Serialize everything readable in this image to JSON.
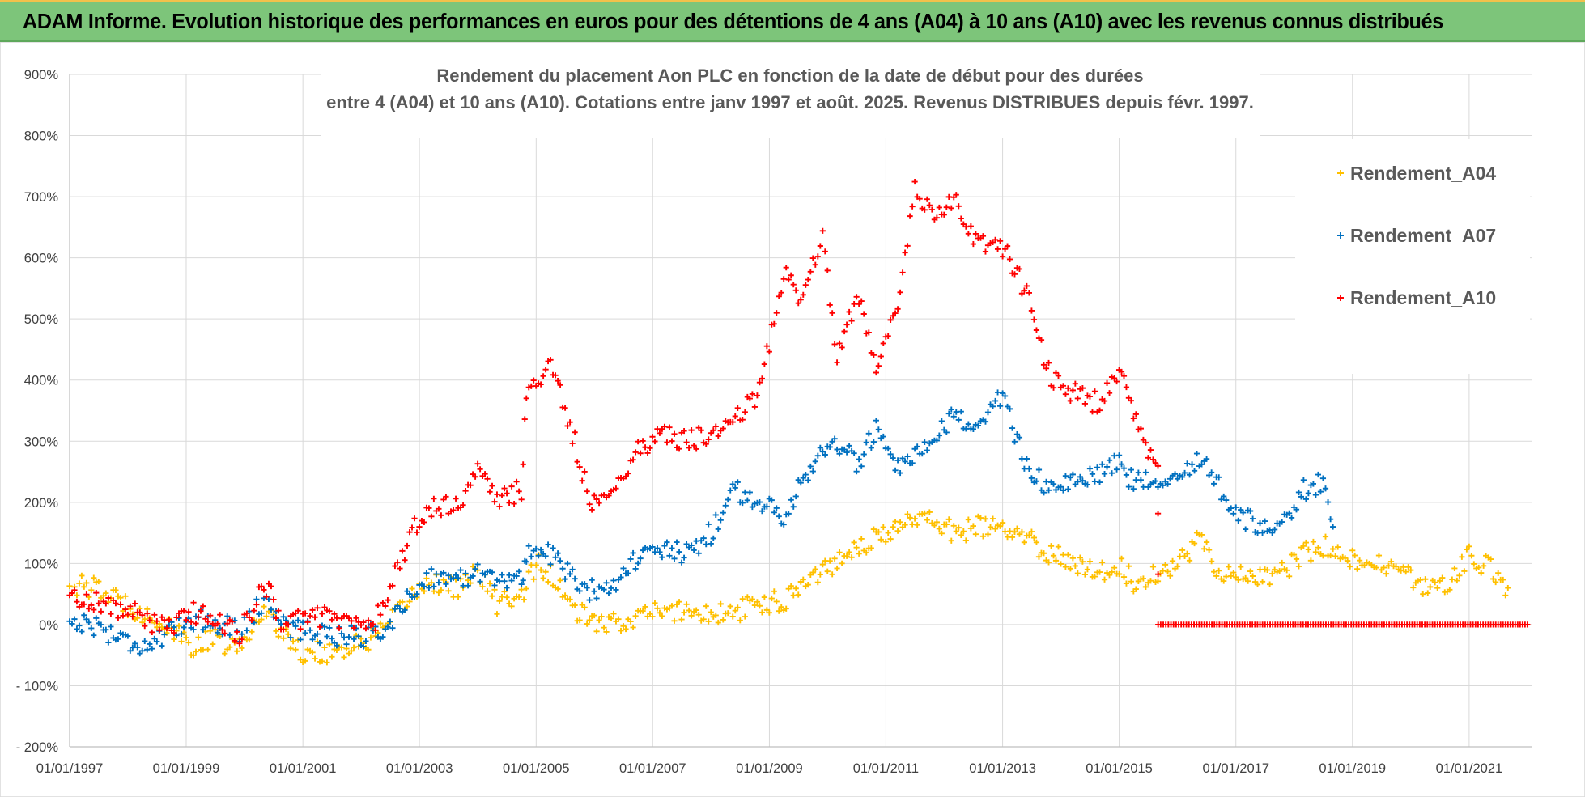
{
  "banner": {
    "title": "ADAM Informe. Evolution historique des performances en euros pour des détentions de 4 ans (A04) à 10 ans (A10) avec les revenus connus distribués"
  },
  "chart_data": {
    "type": "scatter",
    "subtitle_lines": [
      "Rendement du placement Aon PLC en fonction de la date de début pour des durées",
      "entre 4 (A04) et 10 ans (A10).  Cotations entre janv 1997 et août. 2025. Revenus DISTRIBUES depuis févr. 1997."
    ],
    "xlabel": "",
    "ylabel": "",
    "x_range": [
      "1997-01-01",
      "2022-02-01"
    ],
    "ylim": [
      -200,
      900
    ],
    "y_tick_values": [
      -200,
      -100,
      0,
      100,
      200,
      300,
      400,
      500,
      600,
      700,
      800,
      900
    ],
    "y_tick_labels": [
      "- 200%",
      "- 100%",
      "0%",
      "100%",
      "200%",
      "300%",
      "400%",
      "500%",
      "600%",
      "700%",
      "800%",
      "900%"
    ],
    "x_tick_values": [
      "1997-01-01",
      "1999-01-01",
      "2001-01-01",
      "2003-01-01",
      "2005-01-01",
      "2007-01-01",
      "2009-01-01",
      "2011-01-01",
      "2013-01-01",
      "2015-01-01",
      "2017-01-01",
      "2019-01-01",
      "2021-01-01"
    ],
    "x_tick_labels": [
      "01/01/1997",
      "01/01/1999",
      "01/01/2001",
      "01/01/2003",
      "01/01/2005",
      "01/01/2007",
      "01/01/2009",
      "01/01/2011",
      "01/01/2013",
      "01/01/2015",
      "01/01/2017",
      "01/01/2019",
      "01/01/2021"
    ],
    "grid": true,
    "marker": "+",
    "legend_position": "top-right",
    "series": [
      {
        "name": "Rendement_A04",
        "color": "#ffc000",
        "points": [
          [
            "1997-01-01",
            65
          ],
          [
            "1997-06-01",
            60
          ],
          [
            "1997-11-01",
            40
          ],
          [
            "1998-04-01",
            20
          ],
          [
            "1998-09-01",
            -5
          ],
          [
            "1999-02-01",
            -35
          ],
          [
            "1999-07-01",
            -25
          ],
          [
            "1999-12-01",
            -40
          ],
          [
            "2000-04-01",
            10
          ],
          [
            "2000-06-01",
            30
          ],
          [
            "2000-09-01",
            -20
          ],
          [
            "2001-01-01",
            -45
          ],
          [
            "2001-06-01",
            -45
          ],
          [
            "2001-12-01",
            -35
          ],
          [
            "2002-04-01",
            -20
          ],
          [
            "2002-08-01",
            10
          ],
          [
            "2002-12-01",
            55
          ],
          [
            "2003-04-01",
            70
          ],
          [
            "2003-09-01",
            60
          ],
          [
            "2004-01-01",
            85
          ],
          [
            "2004-05-01",
            35
          ],
          [
            "2004-10-01",
            50
          ],
          [
            "2005-01-01",
            100
          ],
          [
            "2005-04-01",
            80
          ],
          [
            "2005-08-01",
            30
          ],
          [
            "2005-12-01",
            5
          ],
          [
            "2006-05-01",
            0
          ],
          [
            "2006-10-01",
            15
          ],
          [
            "2007-03-01",
            20
          ],
          [
            "2007-08-01",
            25
          ],
          [
            "2008-01-01",
            15
          ],
          [
            "2008-06-01",
            20
          ],
          [
            "2008-11-01",
            35
          ],
          [
            "2009-04-01",
            40
          ],
          [
            "2009-08-01",
            70
          ],
          [
            "2009-12-01",
            90
          ],
          [
            "2010-03-01",
            105
          ],
          [
            "2010-07-01",
            130
          ],
          [
            "2010-11-01",
            140
          ],
          [
            "2011-03-01",
            155
          ],
          [
            "2011-07-01",
            180
          ],
          [
            "2011-11-01",
            170
          ],
          [
            "2012-03-01",
            150
          ],
          [
            "2012-08-01",
            160
          ],
          [
            "2013-01-01",
            155
          ],
          [
            "2013-06-01",
            140
          ],
          [
            "2013-11-01",
            115
          ],
          [
            "2014-04-01",
            100
          ],
          [
            "2014-09-01",
            90
          ],
          [
            "2015-01-01",
            95
          ],
          [
            "2015-04-01",
            70
          ],
          [
            "2015-09-01",
            85
          ],
          [
            "2016-01-01",
            100
          ],
          [
            "2016-06-01",
            145
          ],
          [
            "2016-09-01",
            90
          ],
          [
            "2017-01-01",
            80
          ],
          [
            "2017-06-01",
            75
          ],
          [
            "2017-11-01",
            90
          ],
          [
            "2018-03-01",
            115
          ],
          [
            "2018-07-01",
            130
          ],
          [
            "2018-09-01",
            115
          ],
          [
            "2019-01-01",
            105
          ],
          [
            "2019-05-01",
            100
          ],
          [
            "2019-10-01",
            90
          ],
          [
            "2020-02-01",
            70
          ],
          [
            "2020-06-01",
            55
          ],
          [
            "2020-09-01",
            75
          ],
          [
            "2021-01-01",
            110
          ],
          [
            "2021-05-01",
            95
          ],
          [
            "2021-09-01",
            60
          ]
        ]
      },
      {
        "name": "Rendement_A07",
        "color": "#0070c0",
        "points": [
          [
            "1997-01-01",
            5
          ],
          [
            "1997-06-01",
            0
          ],
          [
            "1997-11-01",
            -20
          ],
          [
            "1998-04-01",
            -35
          ],
          [
            "1998-09-01",
            -20
          ],
          [
            "1999-02-01",
            10
          ],
          [
            "1999-07-01",
            5
          ],
          [
            "1999-12-01",
            -10
          ],
          [
            "2000-04-01",
            30
          ],
          [
            "2000-06-01",
            40
          ],
          [
            "2000-09-01",
            0
          ],
          [
            "2001-01-01",
            -10
          ],
          [
            "2001-06-01",
            -15
          ],
          [
            "2001-12-01",
            -20
          ],
          [
            "2002-04-01",
            -15
          ],
          [
            "2002-08-01",
            10
          ],
          [
            "2002-12-01",
            60
          ],
          [
            "2003-04-01",
            80
          ],
          [
            "2003-09-01",
            70
          ],
          [
            "2004-01-01",
            90
          ],
          [
            "2004-05-01",
            75
          ],
          [
            "2004-10-01",
            70
          ],
          [
            "2004-11-01",
            120
          ],
          [
            "2005-04-01",
            115
          ],
          [
            "2005-08-01",
            80
          ],
          [
            "2005-12-01",
            55
          ],
          [
            "2006-05-01",
            70
          ],
          [
            "2006-10-01",
            110
          ],
          [
            "2007-03-01",
            120
          ],
          [
            "2007-08-01",
            115
          ],
          [
            "2008-01-01",
            150
          ],
          [
            "2008-06-01",
            220
          ],
          [
            "2008-11-01",
            200
          ],
          [
            "2009-04-01",
            180
          ],
          [
            "2009-08-01",
            240
          ],
          [
            "2009-12-01",
            280
          ],
          [
            "2010-03-01",
            300
          ],
          [
            "2010-07-01",
            260
          ],
          [
            "2010-11-01",
            320
          ],
          [
            "2011-03-01",
            250
          ],
          [
            "2011-07-01",
            270
          ],
          [
            "2011-11-01",
            300
          ],
          [
            "2012-03-01",
            340
          ],
          [
            "2012-08-01",
            330
          ],
          [
            "2013-01-01",
            370
          ],
          [
            "2013-06-01",
            260
          ],
          [
            "2013-11-01",
            220
          ],
          [
            "2014-04-01",
            230
          ],
          [
            "2014-09-01",
            250
          ],
          [
            "2015-01-01",
            270
          ],
          [
            "2015-04-01",
            230
          ],
          [
            "2015-09-01",
            240
          ],
          [
            "2016-01-01",
            250
          ],
          [
            "2016-06-01",
            270
          ],
          [
            "2016-09-01",
            230
          ],
          [
            "2017-01-01",
            180
          ],
          [
            "2017-06-01",
            160
          ],
          [
            "2017-11-01",
            170
          ],
          [
            "2018-03-01",
            220
          ],
          [
            "2018-07-01",
            230
          ],
          [
            "2018-09-01",
            160
          ]
        ]
      },
      {
        "name": "Rendement_A10",
        "color": "#ff0000",
        "points": [
          [
            "1997-01-01",
            45
          ],
          [
            "1997-06-01",
            40
          ],
          [
            "1997-11-01",
            25
          ],
          [
            "1998-04-01",
            15
          ],
          [
            "1998-09-01",
            -10
          ],
          [
            "1999-02-01",
            20
          ],
          [
            "1999-07-01",
            10
          ],
          [
            "1999-12-01",
            -15
          ],
          [
            "2000-04-01",
            45
          ],
          [
            "2000-06-01",
            55
          ],
          [
            "2000-09-01",
            0
          ],
          [
            "2001-01-01",
            10
          ],
          [
            "2001-06-01",
            15
          ],
          [
            "2001-12-01",
            0
          ],
          [
            "2002-04-01",
            5
          ],
          [
            "2002-08-01",
            80
          ],
          [
            "2002-12-01",
            160
          ],
          [
            "2003-04-01",
            190
          ],
          [
            "2003-09-01",
            200
          ],
          [
            "2004-01-01",
            250
          ],
          [
            "2004-05-01",
            200
          ],
          [
            "2004-10-01",
            220
          ],
          [
            "2004-11-01",
            380
          ],
          [
            "2005-04-01",
            420
          ],
          [
            "2005-08-01",
            330
          ],
          [
            "2005-12-01",
            200
          ],
          [
            "2006-05-01",
            220
          ],
          [
            "2006-10-01",
            290
          ],
          [
            "2007-03-01",
            310
          ],
          [
            "2007-08-01",
            300
          ],
          [
            "2008-01-01",
            310
          ],
          [
            "2008-06-01",
            340
          ],
          [
            "2008-11-01",
            380
          ],
          [
            "2009-04-01",
            580
          ],
          [
            "2009-08-01",
            530
          ],
          [
            "2009-12-01",
            650
          ],
          [
            "2010-03-01",
            430
          ],
          [
            "2010-07-01",
            540
          ],
          [
            "2010-11-01",
            430
          ],
          [
            "2011-03-01",
            500
          ],
          [
            "2011-07-01",
            710
          ],
          [
            "2011-11-01",
            660
          ],
          [
            "2012-03-01",
            700
          ],
          [
            "2012-08-01",
            620
          ],
          [
            "2013-01-01",
            620
          ],
          [
            "2013-06-01",
            540
          ],
          [
            "2013-11-01",
            400
          ],
          [
            "2014-04-01",
            380
          ],
          [
            "2014-09-01",
            360
          ],
          [
            "2015-01-01",
            420
          ],
          [
            "2015-04-01",
            340
          ],
          [
            "2015-09-01",
            250
          ],
          [
            "2015-09-02",
            0
          ],
          [
            "2016-06-01",
            0
          ],
          [
            "2017-06-01",
            0
          ],
          [
            "2018-06-01",
            0
          ],
          [
            "2019-06-01",
            0
          ],
          [
            "2020-06-01",
            0
          ],
          [
            "2021-06-01",
            0
          ],
          [
            "2022-01-01",
            0
          ]
        ]
      }
    ]
  }
}
